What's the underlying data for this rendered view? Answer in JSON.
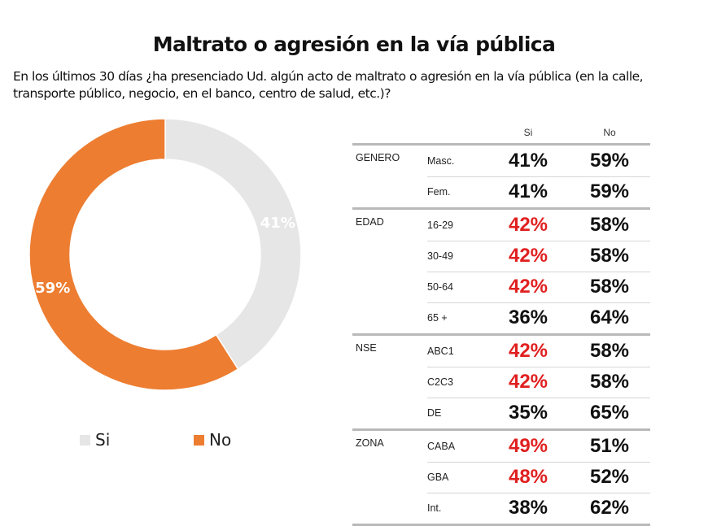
{
  "title": "Maltrato o agresión en la vía pública",
  "question": "En los últimos 30 días ¿ha presenciado Ud.  algún acto de maltrato o agresión en la vía pública (en la calle, transporte público, negocio, en el banco, centro de salud, etc.)?",
  "colors": {
    "si": "#e6e6e6",
    "no": "#ed7d31",
    "highlight": "#e02020",
    "text": "#111111"
  },
  "chart_data": [
    {
      "type": "pie",
      "subtype": "donut",
      "title": "",
      "categories": [
        "Si",
        "No"
      ],
      "values": [
        41,
        59
      ],
      "labels": [
        "41%",
        "59%"
      ],
      "legend": {
        "position": "bottom",
        "entries": [
          "Si",
          "No"
        ]
      }
    },
    {
      "type": "table",
      "columns": [
        "Si",
        "No"
      ],
      "groups": [
        {
          "name": "GENERO",
          "rows": [
            {
              "label": "Masc.",
              "si": "41%",
              "no": "59%",
              "highlight": false
            },
            {
              "label": "Fem.",
              "si": "41%",
              "no": "59%",
              "highlight": false
            }
          ]
        },
        {
          "name": "EDAD",
          "rows": [
            {
              "label": "16-29",
              "si": "42%",
              "no": "58%",
              "highlight": true
            },
            {
              "label": "30-49",
              "si": "42%",
              "no": "58%",
              "highlight": true
            },
            {
              "label": "50-64",
              "si": "42%",
              "no": "58%",
              "highlight": true
            },
            {
              "label": "65 +",
              "si": "36%",
              "no": "64%",
              "highlight": false
            }
          ]
        },
        {
          "name": "NSE",
          "rows": [
            {
              "label": "ABC1",
              "si": "42%",
              "no": "58%",
              "highlight": true
            },
            {
              "label": "C2C3",
              "si": "42%",
              "no": "58%",
              "highlight": true
            },
            {
              "label": "DE",
              "si": "35%",
              "no": "65%",
              "highlight": false
            }
          ]
        },
        {
          "name": "ZONA",
          "rows": [
            {
              "label": "CABA",
              "si": "49%",
              "no": "51%",
              "highlight": true
            },
            {
              "label": "GBA",
              "si": "48%",
              "no": "52%",
              "highlight": true
            },
            {
              "label": "Int.",
              "si": "38%",
              "no": "62%",
              "highlight": false
            }
          ]
        }
      ]
    }
  ]
}
